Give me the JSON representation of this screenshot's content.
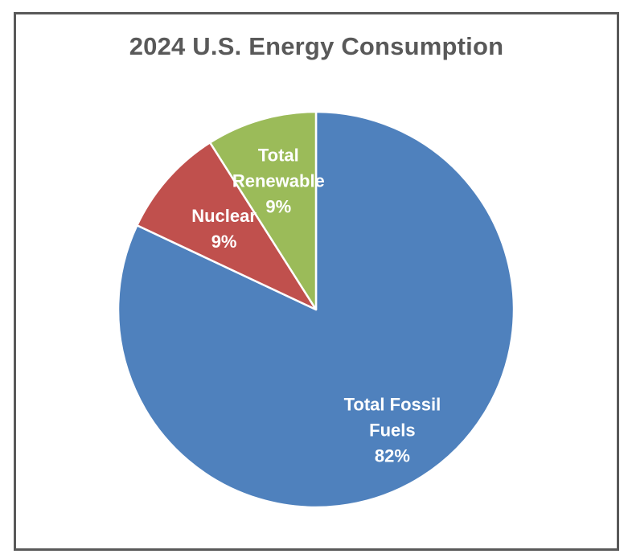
{
  "chart_data": {
    "type": "pie",
    "title": "2024 U.S. Energy Consumption",
    "start_angle_deg": 0,
    "direction": "clockwise",
    "slices": [
      {
        "label": "Total Fossil Fuels",
        "value": 82,
        "value_label": "82%",
        "label_lines": [
          "Total Fossil",
          "Fuels",
          "82%"
        ],
        "color": "#4F81BD"
      },
      {
        "label": "Nuclear",
        "value": 9,
        "value_label": "9%",
        "label_lines": [
          "Nuclear",
          "9%"
        ],
        "color": "#C0504D"
      },
      {
        "label": "Total Renewable",
        "value": 9,
        "value_label": "9%",
        "label_lines": [
          "Total",
          "Renewable",
          "9%"
        ],
        "color": "#9BBB59"
      }
    ],
    "legend": "none",
    "slice_border_color": "#ffffff"
  }
}
